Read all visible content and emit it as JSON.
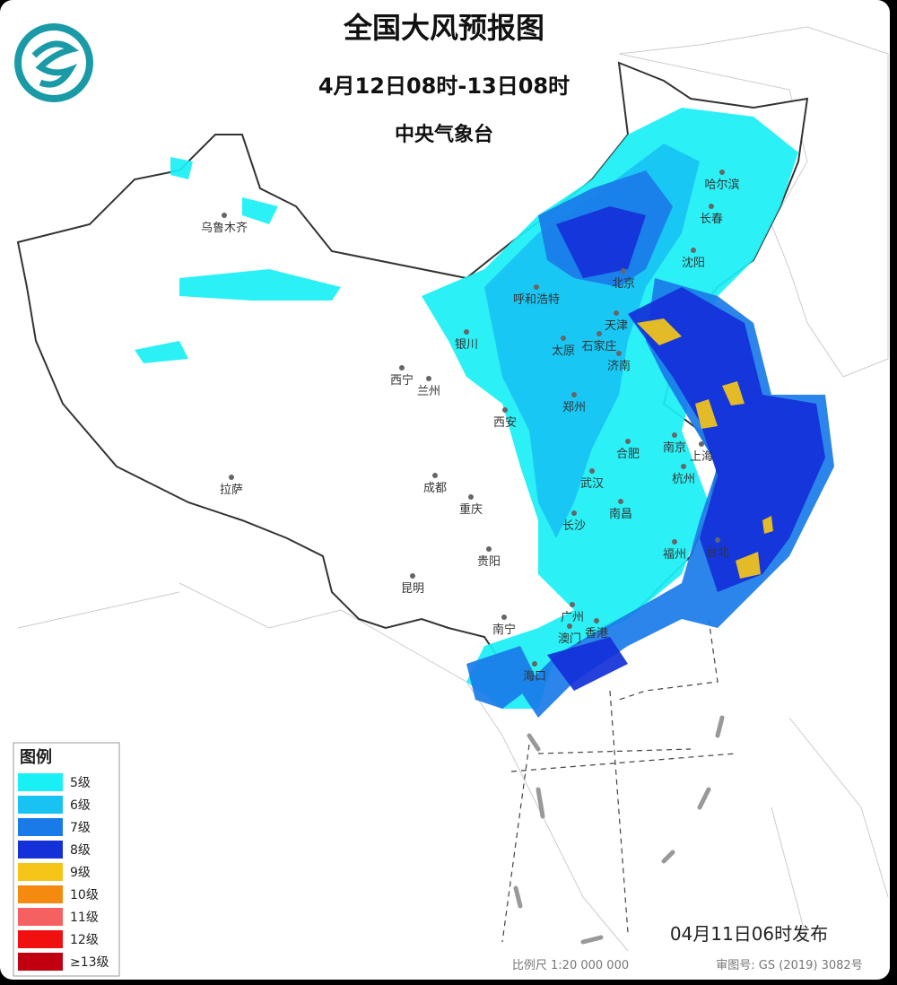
{
  "header": {
    "title": "全国大风预报图",
    "period": "4月12日08时-13日08时",
    "agency": "中央气象台"
  },
  "cities": [
    {
      "name": "乌鲁木齐"
    },
    {
      "name": "哈尔滨"
    },
    {
      "name": "长春"
    },
    {
      "name": "沈阳"
    },
    {
      "name": "北京"
    },
    {
      "name": "呼和浩特"
    },
    {
      "name": "天津"
    },
    {
      "name": "银川"
    },
    {
      "name": "太原"
    },
    {
      "name": "石家庄"
    },
    {
      "name": "济南"
    },
    {
      "name": "西宁"
    },
    {
      "name": "兰州"
    },
    {
      "name": "郑州"
    },
    {
      "name": "西安"
    },
    {
      "name": "南京"
    },
    {
      "name": "合肥"
    },
    {
      "name": "上海"
    },
    {
      "name": "成都"
    },
    {
      "name": "武汉"
    },
    {
      "name": "杭州"
    },
    {
      "name": "拉萨"
    },
    {
      "name": "重庆"
    },
    {
      "name": "长沙"
    },
    {
      "name": "南昌"
    },
    {
      "name": "贵阳"
    },
    {
      "name": "福州"
    },
    {
      "name": "台北"
    },
    {
      "name": "昆明"
    },
    {
      "name": "广州"
    },
    {
      "name": "南宁"
    },
    {
      "name": "澳门"
    },
    {
      "name": "香港"
    },
    {
      "name": "海口"
    }
  ],
  "legend": {
    "title": "图例",
    "items": [
      {
        "label": "5级",
        "color": "#19f0f5"
      },
      {
        "label": "6级",
        "color": "#18c3f3"
      },
      {
        "label": "7级",
        "color": "#1a7be8"
      },
      {
        "label": "8级",
        "color": "#1430d8"
      },
      {
        "label": "9级",
        "color": "#f5c518"
      },
      {
        "label": "10级",
        "color": "#f58a10"
      },
      {
        "label": "11级",
        "color": "#f56060"
      },
      {
        "label": "12级",
        "color": "#f01010"
      },
      {
        "label": "≥13级",
        "color": "#c00010"
      }
    ]
  },
  "footer": {
    "issued": "04月11日06时发布",
    "scale": "比例尺 1:20 000 000",
    "review": "审图号: GS (2019) 3082号"
  }
}
